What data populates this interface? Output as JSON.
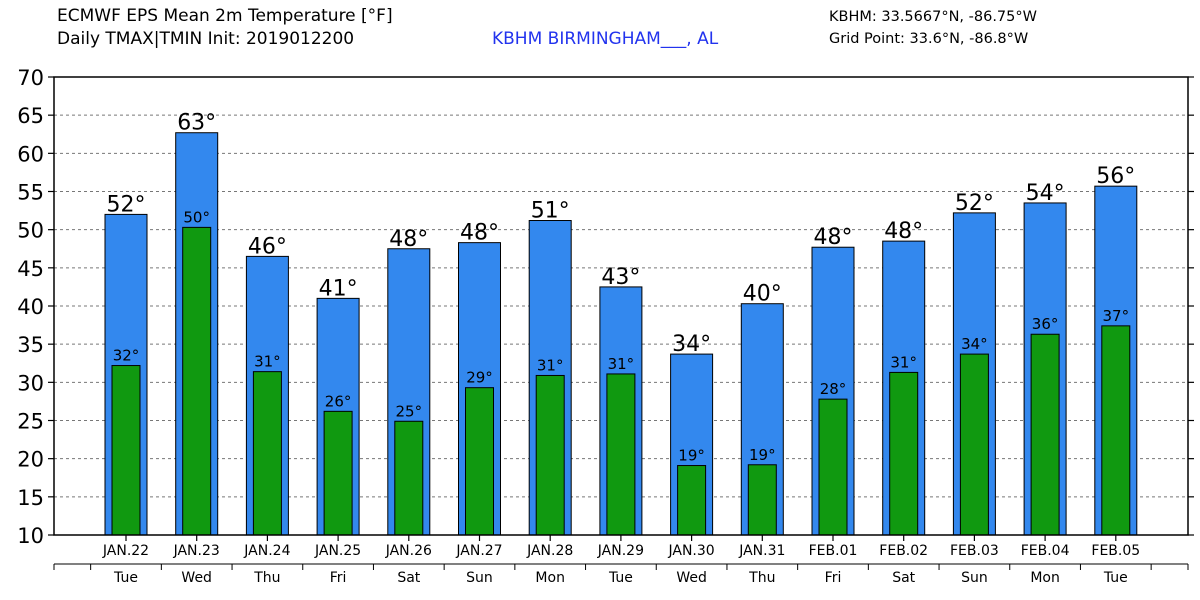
{
  "header": {
    "title_line1": "ECMWF EPS Mean 2m Temperature [°F]",
    "title_line2": "Daily TMAX|TMIN Init: 2019012200",
    "station": "KBHM BIRMINGHAM___, AL",
    "station_coords": "KBHM: 33.5667°N, -86.75°W",
    "grid_point": "Grid Point: 33.6°N, -86.8°W"
  },
  "chart_data": {
    "type": "bar",
    "categories": [
      "JAN.22",
      "JAN.23",
      "JAN.24",
      "JAN.25",
      "JAN.26",
      "JAN.27",
      "JAN.28",
      "JAN.29",
      "JAN.30",
      "JAN.31",
      "FEB.01",
      "FEB.02",
      "FEB.03",
      "FEB.04",
      "FEB.05"
    ],
    "weekdays": [
      "Tue",
      "Wed",
      "Thu",
      "Fri",
      "Sat",
      "Sun",
      "Mon",
      "Tue",
      "Wed",
      "Thu",
      "Fri",
      "Sat",
      "Sun",
      "Mon",
      "Tue"
    ],
    "series": [
      {
        "values": [
          52,
          62.7,
          46.5,
          41,
          47.5,
          48.3,
          51.2,
          42.5,
          33.7,
          40.3,
          47.7,
          48.5,
          52.2,
          53.5,
          55.7
        ],
        "labels": [
          "52°",
          "63°",
          "46°",
          "41°",
          "48°",
          "48°",
          "51°",
          "43°",
          "34°",
          "40°",
          "48°",
          "48°",
          "52°",
          "54°",
          "56°"
        ],
        "color": "#3388ee"
      },
      {
        "values": [
          32.2,
          50.3,
          31.4,
          26.2,
          24.9,
          29.3,
          30.9,
          31.1,
          19.1,
          19.2,
          27.8,
          31.3,
          33.7,
          36.3,
          37.4
        ],
        "labels": [
          "32°",
          "50°",
          "31°",
          "26°",
          "25°",
          "29°",
          "31°",
          "31°",
          "19°",
          "19°",
          "28°",
          "31°",
          "34°",
          "36°",
          "37°"
        ],
        "color": "#109910"
      }
    ],
    "ylim": [
      10,
      70
    ],
    "yticks": [
      10,
      15,
      20,
      25,
      30,
      35,
      40,
      45,
      50,
      55,
      60,
      65,
      70
    ],
    "grid": true,
    "gridline_color": "#777777"
  }
}
